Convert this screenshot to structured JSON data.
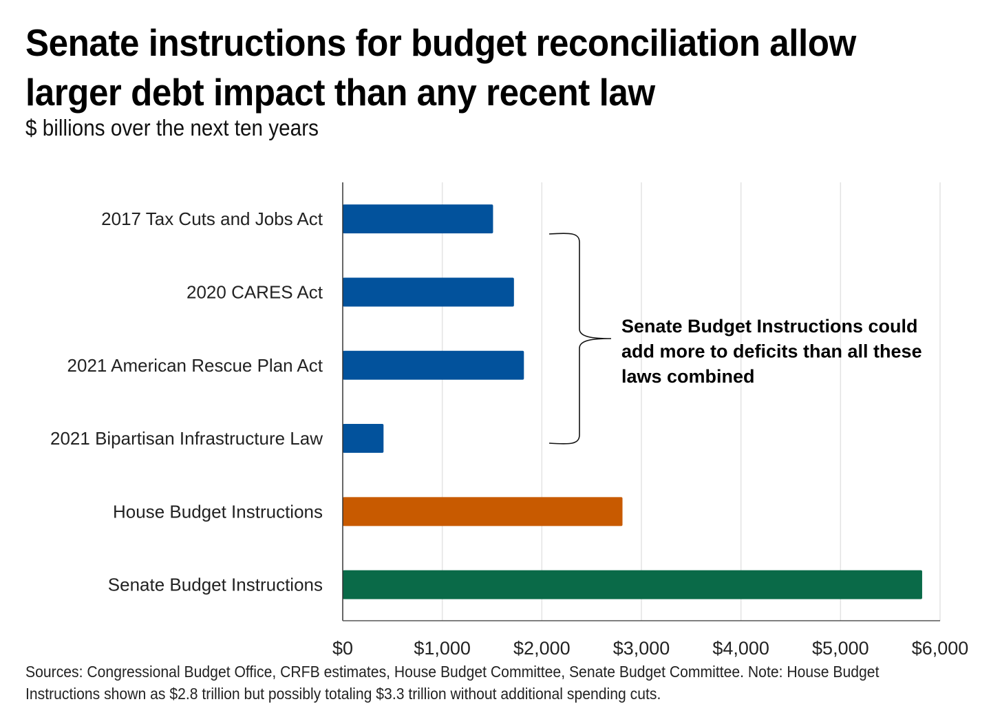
{
  "chart_data": {
    "type": "bar",
    "orientation": "horizontal",
    "title": "Senate instructions for budget reconciliation allow larger debt impact than any recent law",
    "subtitle": "$ billions over the next ten years",
    "xlabel": "",
    "ylabel": "",
    "categories": [
      "2017 Tax Cuts and Jobs Act",
      "2020 CARES Act",
      "2021 American Rescue Plan Act",
      "2021 Bipartisan Infrastructure Law",
      "House Budget Instructions",
      "Senate Budget Instructions"
    ],
    "values": [
      1510,
      1720,
      1820,
      410,
      2810,
      5820
    ],
    "colors": [
      "#02529c",
      "#02529c",
      "#02529c",
      "#02529c",
      "#c85a00",
      "#0a6a48"
    ],
    "xlim": [
      0,
      6000
    ],
    "xticks": [
      0,
      1000,
      2000,
      3000,
      4000,
      5000,
      6000
    ],
    "xtick_labels": [
      "$0",
      "$1,000",
      "$2,000",
      "$3,000",
      "$4,000",
      "$5,000",
      "$6,000"
    ],
    "grid": true,
    "legend": "none",
    "annotation": {
      "text_lines": [
        "Senate Budget Instructions could",
        "add more to deficits than all these",
        "laws combined"
      ],
      "brackets_categories": [
        "2017 Tax Cuts and Jobs Act",
        "2020 CARES Act",
        "2021 American Rescue Plan Act",
        "2021 Bipartisan Infrastructure Law"
      ]
    }
  },
  "footer": "Sources: Congressional Budget Office, CRFB estimates, House Budget Committee, Senate Budget Committee. Note: House Budget Instructions shown as $2.8 trillion but possibly totaling $3.3 trillion without additional spending cuts."
}
